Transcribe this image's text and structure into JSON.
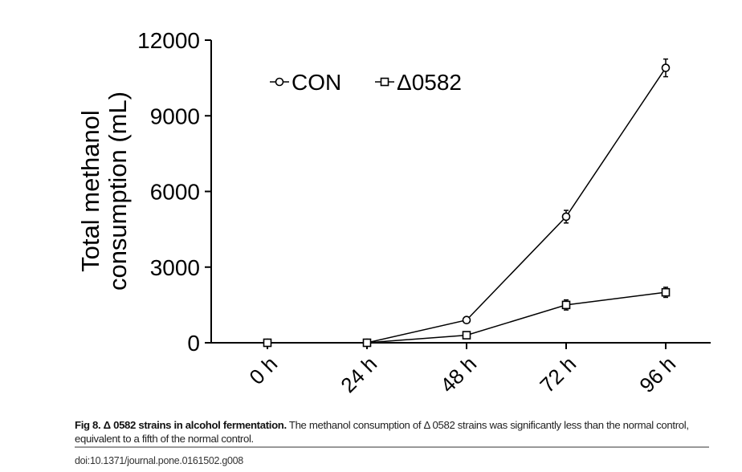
{
  "chart_data": {
    "type": "line",
    "title": "",
    "xlabel": "",
    "ylabel_lines": [
      "Total methanol",
      "consumption (mL)"
    ],
    "categories": [
      "0 h",
      "24 h",
      "48 h",
      "72 h",
      "96 h"
    ],
    "ylim": [
      0,
      12000
    ],
    "yticks": [
      "0",
      "3000",
      "6000",
      "9000",
      "12000"
    ],
    "ytick_values": [
      0,
      3000,
      6000,
      9000,
      12000
    ],
    "grid": false,
    "legend_position": "top",
    "series": [
      {
        "name": "CON",
        "marker": "circle",
        "values": [
          0,
          0,
          900,
          5000,
          10900
        ],
        "errors": [
          0,
          0,
          60,
          250,
          350
        ]
      },
      {
        "name": "Δ0582",
        "marker": "square",
        "values": [
          0,
          0,
          300,
          1500,
          2000
        ],
        "errors": [
          0,
          0,
          40,
          200,
          200
        ]
      }
    ]
  },
  "caption": {
    "label": "Fig 8. Δ 0582 strains in alcohol fermentation.",
    "text": " The methanol consumption of Δ 0582 strains was significantly less than the normal control, equivalent to a fifth of the normal control."
  },
  "doi": "doi:10.1371/journal.pone.0161502.g008"
}
